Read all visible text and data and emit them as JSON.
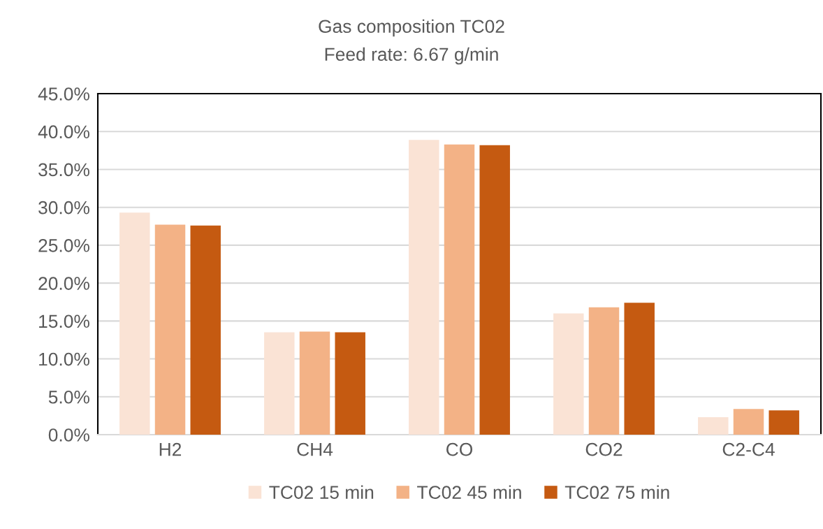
{
  "chart_data": {
    "type": "bar",
    "title": "Gas composition TC02",
    "subtitle": "Feed rate: 6.67 g/min",
    "categories": [
      "H2",
      "CH4",
      "CO",
      "CO2",
      "C2-C4"
    ],
    "series": [
      {
        "name": "TC02 15 min",
        "color": "#fae3d5",
        "values": [
          29.3,
          13.5,
          38.9,
          16.0,
          2.3
        ]
      },
      {
        "name": "TC02 45 min",
        "color": "#f3b286",
        "values": [
          27.7,
          13.6,
          38.3,
          16.8,
          3.4
        ]
      },
      {
        "name": "TC02 75 min",
        "color": "#c55a11",
        "values": [
          27.6,
          13.5,
          38.2,
          17.4,
          3.2
        ]
      }
    ],
    "ylim": [
      0,
      45
    ],
    "yticks": [
      {
        "value": 0,
        "label": "0.0%"
      },
      {
        "value": 5,
        "label": "5.0%"
      },
      {
        "value": 10,
        "label": "10.0%"
      },
      {
        "value": 15,
        "label": "15.0%"
      },
      {
        "value": 20,
        "label": "20.0%"
      },
      {
        "value": 25,
        "label": "25.0%"
      },
      {
        "value": 30,
        "label": "30.0%"
      },
      {
        "value": 35,
        "label": "35.0%"
      },
      {
        "value": 40,
        "label": "40.0%"
      },
      {
        "value": 45,
        "label": "45.0%"
      }
    ],
    "grid": "y",
    "legend": "bottom"
  }
}
